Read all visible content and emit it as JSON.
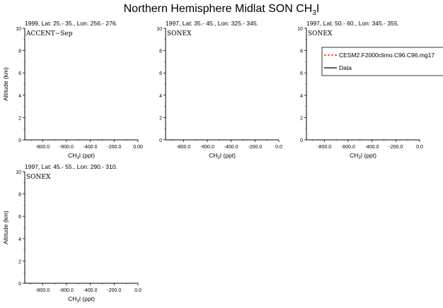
{
  "figure": {
    "title_main": "Northern Hemisphere Midlat SON CH",
    "title_sub": "3",
    "title_tail": "I"
  },
  "axis_labels": {
    "y": "Altitude (km)",
    "x_main": "CH",
    "x_sub": "3",
    "x_tail": "I (ppt)"
  },
  "legend": {
    "entries": [
      {
        "label": "CESM2.F2000climo.C96.C96.mg17",
        "color": "#ff0000",
        "style": "dashed"
      },
      {
        "label": "Data",
        "color": "#000000",
        "style": "solid"
      }
    ]
  },
  "chart_data": [
    {
      "type": "line",
      "title": "1999, Lat: 25.- 35., Lon: 256.- 276.",
      "campaign": "ACCENT−Sep",
      "xlabel": "CH3I (ppt)",
      "ylabel": "Altitude (km)",
      "xlim": [
        -950,
        0
      ],
      "ylim": [
        0,
        10
      ],
      "x_ticks": [
        -800,
        -600,
        -400,
        -200,
        0
      ],
      "x_tick_labels": [
        "-800.0",
        "-600.0",
        "-400.0",
        "-200.0",
        "0.00"
      ],
      "y_ticks": [
        0,
        2,
        4,
        6,
        8,
        10
      ],
      "y_tick_labels": [
        "0",
        "2",
        "4",
        "6",
        "8",
        "10"
      ],
      "series": []
    },
    {
      "type": "line",
      "title": "1997, Lat: 35.- 45., Lon: 325.- 345.",
      "campaign": "SONEX",
      "xlabel": "CH3I (ppt)",
      "ylabel": "",
      "xlim": [
        -950,
        0
      ],
      "ylim": [
        0,
        10
      ],
      "x_ticks": [
        -800,
        -600,
        -400,
        -200,
        0
      ],
      "x_tick_labels": [
        "-800.0",
        "-600.0",
        "-400.0",
        "-200.0",
        "0.0"
      ],
      "y_ticks": [
        0,
        2,
        4,
        6,
        8,
        10
      ],
      "y_tick_labels": [
        "0",
        "2",
        "4",
        "6",
        "8",
        "10"
      ],
      "series": []
    },
    {
      "type": "line",
      "title": "1997, Lat: 50.- 60., Lon: 345.- 355.",
      "campaign": "SONEX",
      "xlabel": "CH3I (ppt)",
      "ylabel": "",
      "xlim": [
        -950,
        0
      ],
      "ylim": [
        0,
        10
      ],
      "x_ticks": [
        -800,
        -600,
        -400,
        -200,
        0
      ],
      "x_tick_labels": [
        "-800.0",
        "-600.0",
        "-400.0",
        "-200.0",
        "0.0"
      ],
      "y_ticks": [
        0,
        2,
        4,
        6,
        8,
        10
      ],
      "y_tick_labels": [
        "0",
        "2",
        "4",
        "6",
        "8",
        "10"
      ],
      "series": []
    },
    {
      "type": "line",
      "title": "1997, Lat: 45.- 55., Lon: 290.- 310.",
      "campaign": "SONEX",
      "xlabel": "CH3I (ppt)",
      "ylabel": "Altitude (km)",
      "xlim": [
        -950,
        0
      ],
      "ylim": [
        0,
        10
      ],
      "x_ticks": [
        -800,
        -600,
        -400,
        -200,
        0
      ],
      "x_tick_labels": [
        "-800.0",
        "-600.0",
        "-400.0",
        "-200.0",
        "0.0"
      ],
      "y_ticks": [
        0,
        2,
        4,
        6,
        8,
        10
      ],
      "y_tick_labels": [
        "0",
        "2",
        "4",
        "6",
        "8",
        "10"
      ],
      "series": []
    }
  ]
}
